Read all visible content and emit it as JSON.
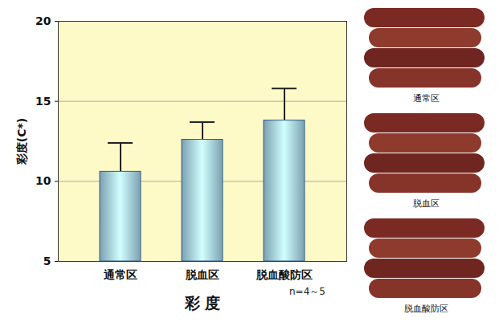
{
  "chart_data": {
    "type": "bar",
    "categories": [
      "通常区",
      "脱血区",
      "脱血酸防区"
    ],
    "values": [
      10.6,
      12.6,
      13.8
    ],
    "errors": [
      1.8,
      1.1,
      2.0
    ],
    "color": "#a9dcf2",
    "xlabel": "彩 度",
    "ylabel": "彩度(C*)",
    "ylim": [
      5,
      20
    ],
    "yticks": [
      5,
      10,
      15,
      20
    ],
    "grid": true,
    "annotations": [
      "n=4～5"
    ],
    "photo_captions": [
      "通常区",
      "脱血区",
      "脱血酸防区"
    ]
  }
}
